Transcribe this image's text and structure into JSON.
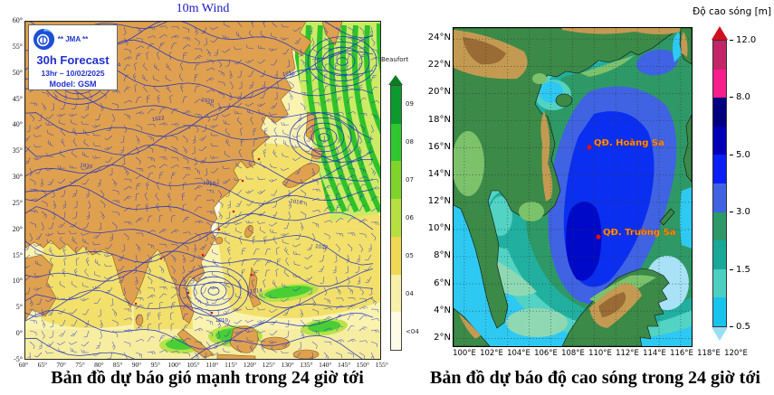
{
  "left_panel": {
    "title": "10m Wind",
    "info_box": {
      "agency": "** JMA **",
      "forecast": "30h Forecast",
      "valid": "13hr – 10/02/2025",
      "model": "Model: GSM"
    },
    "legend": {
      "title": "Beaufort",
      "labels": [
        "09",
        "08",
        "07",
        "06",
        "05",
        "04",
        "<04"
      ],
      "colors": [
        "#0c9a2e",
        "#2ec82e",
        "#7fd42a",
        "#b5e040",
        "#f0d855",
        "#f7f0a8",
        "#fdfbe8"
      ],
      "arrow_color": "#0a7c22"
    },
    "y_ticks": [
      "60°",
      "55°",
      "50°",
      "45°",
      "40°",
      "35°",
      "30°",
      "25°",
      "20°",
      "15°",
      "10°",
      "5°",
      "0°",
      "-5°"
    ],
    "x_ticks": [
      "60°",
      "65°",
      "70°",
      "75°",
      "80°",
      "85°",
      "90°",
      "95°",
      "100°",
      "105°",
      "110°",
      "115°",
      "120°",
      "125°",
      "130°",
      "135°",
      "140°",
      "145°",
      "150°",
      "155°"
    ],
    "isobar_labels": [
      "1024",
      "1020",
      "1016",
      "1018",
      "1014",
      "1030",
      "1012",
      "1022",
      "1010",
      "1016"
    ],
    "caption": "Bản đồ dự báo gió mạnh trong 24 giờ tới"
  },
  "right_panel": {
    "colorbar": {
      "title": "Độ cao sóng [m]",
      "tick_labels": [
        "12.0",
        "8.0",
        "5.0",
        "3.0",
        "1.5",
        "0.5"
      ],
      "colors": [
        "#c22667",
        "#f81d8c",
        "#000080",
        "#0000b8",
        "#0a1ff5",
        "#3f63e3",
        "#2e9966",
        "#18a898",
        "#4ccfc0",
        "#18c3ee"
      ],
      "arrow_up_color": "#cf1020",
      "arrow_down_color": "#9adef5"
    },
    "y_ticks": [
      "24°N",
      "22°N",
      "20°N",
      "18°N",
      "16°N",
      "14°N",
      "12°N",
      "10°N",
      "8°N",
      "6°N",
      "4°N",
      "2°N"
    ],
    "x_ticks": [
      "100°E",
      "102°E",
      "104°E",
      "106°E",
      "108°E",
      "110°E",
      "112°E",
      "114°E",
      "116°E",
      "118°E",
      "120°E"
    ],
    "labels": {
      "hoang_sa": "QĐ. Hoàng Sa",
      "truong_sa": "QĐ. Trường Sa"
    },
    "caption": "Bản đồ dự báo độ cao sóng trong 24 giờ tới"
  },
  "colors": {
    "title_blue": "#1a1acc",
    "contour_blue": "#1f2fc0",
    "land_tan": "#dfa14f",
    "label_orange": "#ff9900",
    "marker_red": "#e01010",
    "sea_cyan": "#2ec9f2",
    "sea_turquoise": "#52d3c4",
    "sea_teal": "#21b0a0",
    "sea_green": "#2e9966",
    "sea_royal": "#3f63e3",
    "sea_blue": "#0a2ff0",
    "sea_navy": "#0009c8"
  }
}
